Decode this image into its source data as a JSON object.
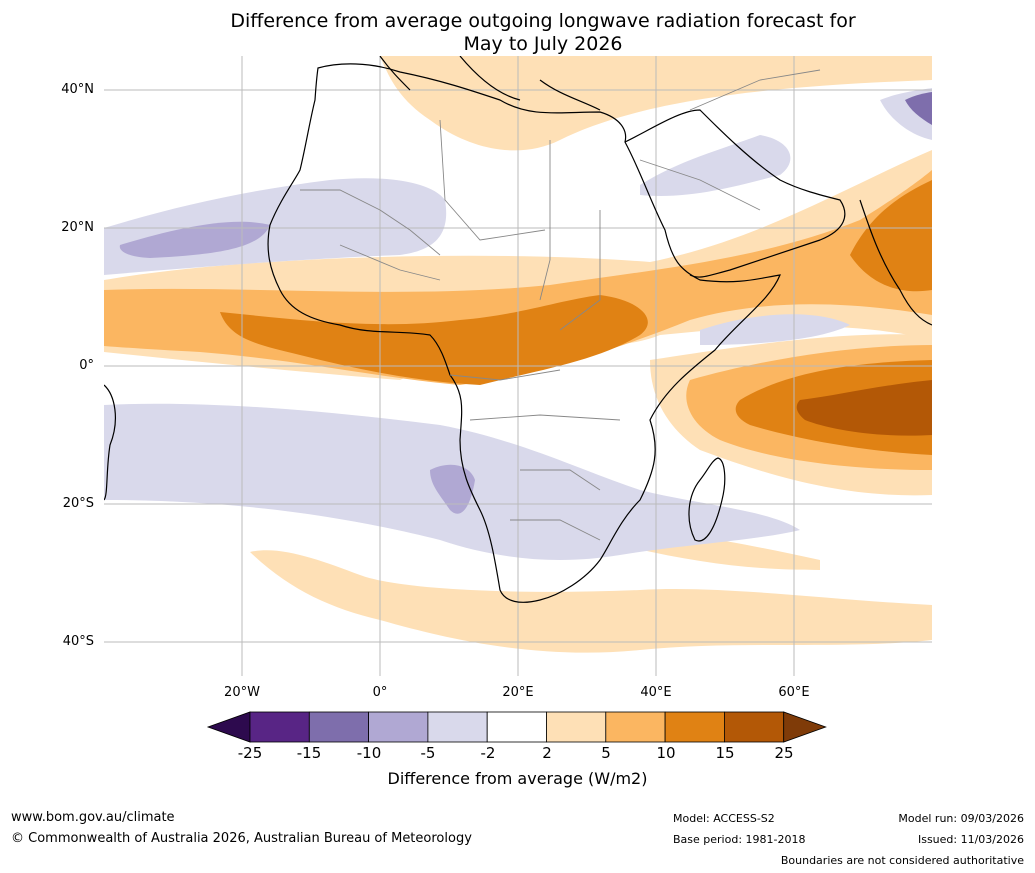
{
  "title": {
    "line1": "Difference from average outgoing longwave radiation forecast for",
    "line2": "May to July 2026"
  },
  "axes": {
    "lat_labels": [
      "40°N",
      "20°N",
      "0°",
      "20°S",
      "40°S"
    ],
    "lon_labels": [
      "20°W",
      "0°",
      "20°E",
      "40°E",
      "60°E"
    ]
  },
  "colorbar": {
    "ticks": [
      "-25",
      "-15",
      "-10",
      "-5",
      "-2",
      "2",
      "5",
      "10",
      "15",
      "25"
    ],
    "colors": [
      "#2d0a4e",
      "#582585",
      "#7e6eac",
      "#b0a8d3",
      "#d9d9eb",
      "#ffffff",
      "#fee0b6",
      "#fbb661",
      "#e08214",
      "#b35806",
      "#7f3b08"
    ],
    "label": "Difference from average (W/m2)"
  },
  "footer": {
    "url": "www.bom.gov.au/climate",
    "copyright": "© Commonwealth of Australia 2026, Australian Bureau of Meteorology",
    "model": "Model: ACCESS-S2",
    "base_period": "Base period: 1981-2018",
    "model_run": "Model run: 09/03/2026",
    "issued": "Issued: 11/03/2026",
    "disclaimer": "Boundaries are not considered authoritative"
  }
}
